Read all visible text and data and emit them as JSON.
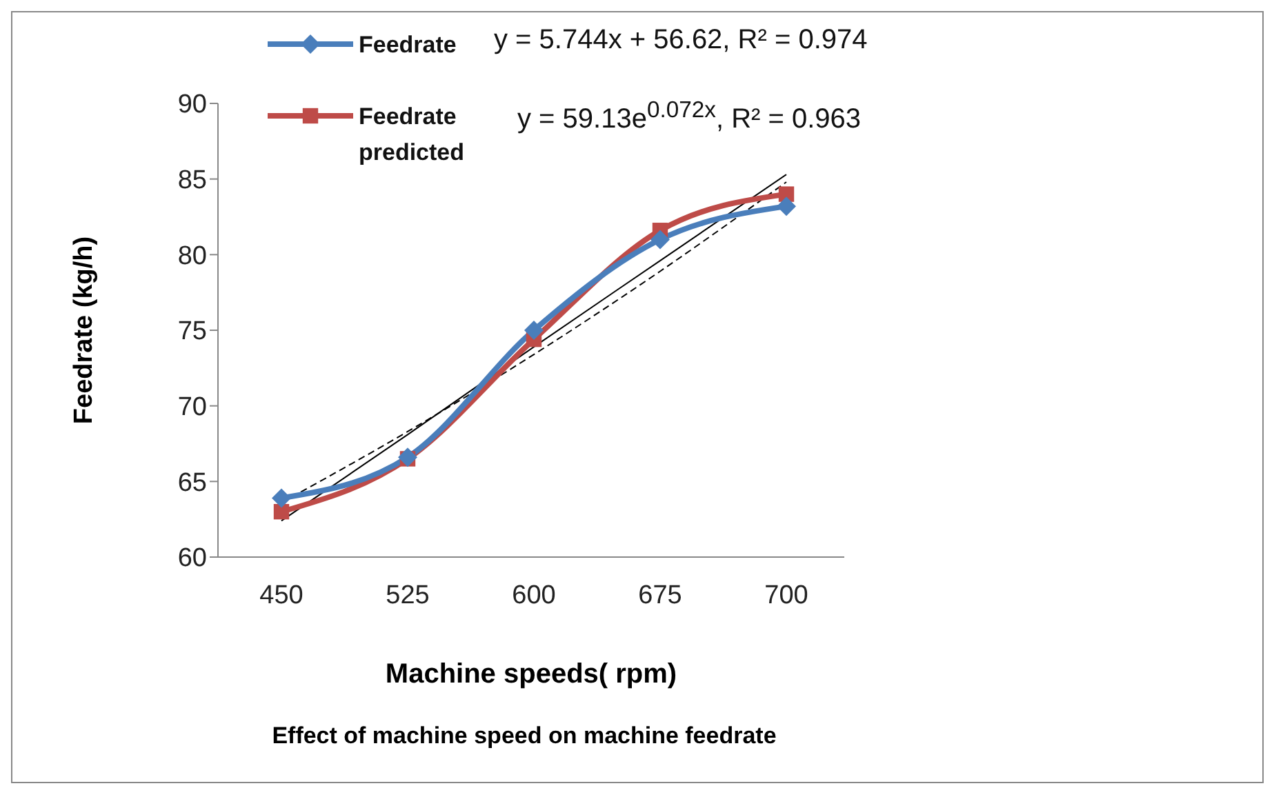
{
  "chart_data": {
    "type": "line",
    "title": "Effect of machine speed on machine feedrate",
    "xlabel": "Machine speeds( rpm)",
    "ylabel": "Feedrate (kg/h)",
    "categories": [
      "450",
      "525",
      "600",
      "675",
      "700"
    ],
    "series": [
      {
        "name": "Feedrate",
        "color": "#4a7ebb",
        "values": [
          63.9,
          66.6,
          75.0,
          81.0,
          83.2
        ],
        "marker": "diamond"
      },
      {
        "name": "Feedrate predicted",
        "color": "#be4b48",
        "values": [
          63.0,
          66.5,
          74.4,
          81.6,
          84.0
        ],
        "marker": "square"
      },
      {
        "color": "#000000",
        "values": [
          62.4,
          68.1,
          73.9,
          79.6,
          85.3
        ],
        "marker": "none",
        "line_style": "solid"
      },
      {
        "color": "#000000",
        "values": [
          63.6,
          68.3,
          73.4,
          78.9,
          84.8
        ],
        "marker": "none",
        "line_style": "dashed"
      }
    ],
    "annotations": [
      "y = 5.744x + 56.62, R² = 0.974",
      "y = 59.13e$^{0.072x}$, R² = 0.963"
    ],
    "ylim": [
      60,
      90
    ],
    "yticks": [
      60,
      65,
      70,
      75,
      80,
      85,
      90
    ],
    "legend": "top left"
  }
}
